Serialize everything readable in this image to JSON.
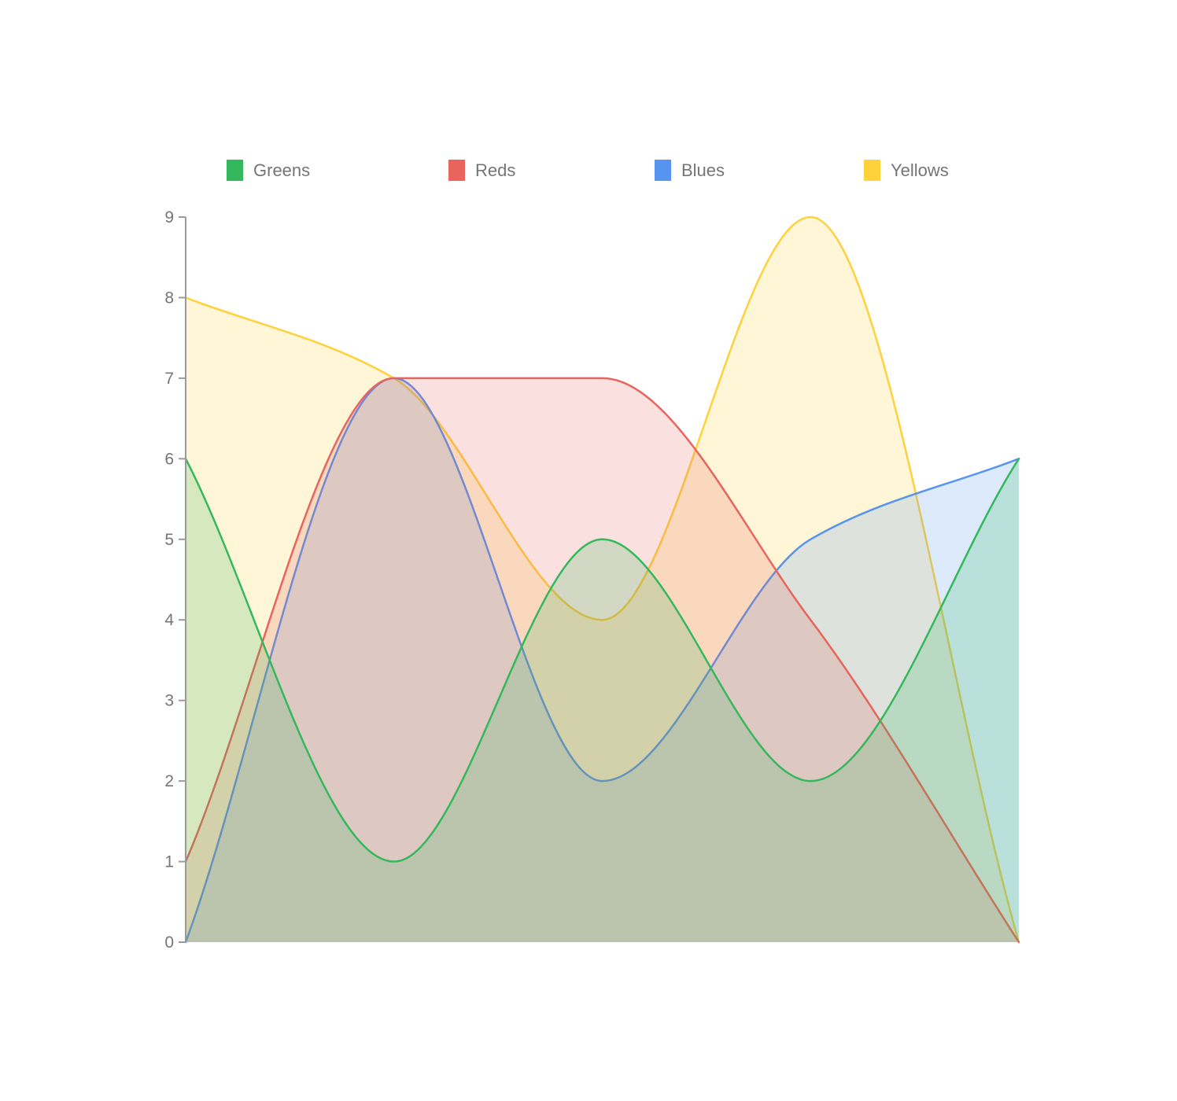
{
  "chart_data": {
    "type": "area",
    "title": "",
    "xlabel": "",
    "ylabel": "",
    "x": [
      0,
      1,
      2,
      3,
      4
    ],
    "x_tick_labels": [],
    "series": [
      {
        "name": "Greens",
        "color": "#34b85c",
        "values": [
          6,
          1,
          5,
          2,
          6
        ]
      },
      {
        "name": "Reds",
        "color": "#e8645c",
        "values": [
          1,
          7,
          7,
          4,
          0
        ]
      },
      {
        "name": "Blues",
        "color": "#5794f0",
        "values": [
          0,
          7,
          2,
          5,
          6
        ]
      },
      {
        "name": "Yellows",
        "color": "#ffd13b",
        "values": [
          8,
          7,
          4,
          9,
          0
        ]
      }
    ],
    "ylim": [
      0,
      9
    ],
    "yticks": [
      "0",
      "1",
      "2",
      "3",
      "4",
      "5",
      "6",
      "7",
      "8",
      "9"
    ],
    "interpolation": "monotone",
    "fill": "to-zero",
    "grid": false,
    "legend_position": "top",
    "axis_color": "#9a9a9a",
    "tick_label_color": "#757575",
    "legend_label_color": "#757575"
  }
}
